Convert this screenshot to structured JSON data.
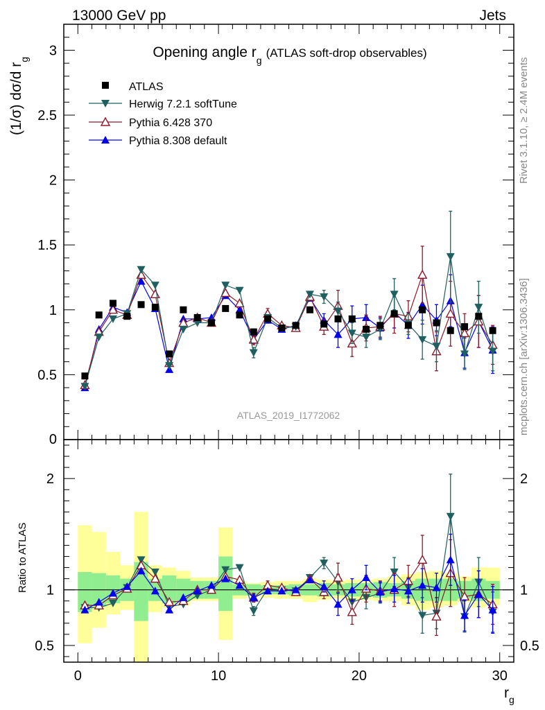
{
  "header": {
    "left": "13000 GeV pp",
    "right": "Jets"
  },
  "side_labels": {
    "rivet": "Rivet 3.1.10, ≥ 2.4M events",
    "mcplots": "mcplots.cern.ch [arXiv:1306.3436]"
  },
  "watermark": "ATLAS_2019_I1772062",
  "colors": {
    "herwig": "#1f5f5f",
    "pythia6": "#8b1a2b",
    "pythia8": "#0000ee",
    "atlas": "#000000",
    "band_inner": "#90ee90",
    "band_outer": "#ffff99"
  },
  "legend": {
    "atlas": "ATLAS",
    "herwig": "Herwig 7.2.1 softTune",
    "pythia6": "Pythia 6.428 370",
    "pythia8": "Pythia 8.308 default"
  },
  "chart_data": [
    {
      "type": "scatter",
      "title_main": "Opening angle r",
      "title_sub": "g",
      "title_rest": "(ATLAS soft-drop observables)",
      "ylabel": "(1/σ) dσ/d r",
      "ylabel_sub": "g",
      "xlim": [
        -1,
        31
      ],
      "ylim": [
        0,
        3.2
      ],
      "yticks": [
        0.5,
        1,
        1.5,
        2,
        2.5,
        3
      ],
      "ytick_labels": [
        "0.5",
        "1",
        "1.5",
        "2",
        "2.5",
        "3"
      ],
      "x": [
        0.5,
        1.5,
        2.5,
        3.5,
        4.5,
        5.5,
        6.5,
        7.5,
        8.5,
        9.5,
        10.5,
        11.5,
        12.5,
        13.5,
        14.5,
        15.5,
        16.5,
        17.5,
        18.5,
        19.5,
        20.5,
        21.5,
        22.5,
        23.5,
        24.5,
        25.5,
        26.5,
        27.5,
        28.5,
        29.5
      ],
      "series": [
        {
          "name": "ATLAS",
          "key": "atlas",
          "marker": "square",
          "values": [
            0.49,
            0.96,
            1.05,
            0.95,
            1.04,
            1.02,
            0.66,
            1.0,
            0.94,
            0.9,
            1.01,
            0.96,
            0.83,
            0.93,
            0.86,
            0.88,
            1.0,
            0.89,
            0.93,
            0.93,
            0.85,
            0.88,
            0.97,
            0.88,
            1.0,
            0.9,
            0.84,
            0.87,
            0.95,
            0.84
          ]
        },
        {
          "name": "Herwig 7.2.1 softTune",
          "key": "herwig",
          "marker": "triangle-down",
          "values": [
            0.41,
            0.79,
            0.93,
            0.97,
            1.31,
            1.19,
            0.57,
            0.85,
            0.9,
            0.9,
            1.19,
            1.15,
            0.67,
            0.94,
            0.86,
            0.87,
            1.12,
            1.1,
            0.99,
            0.82,
            0.79,
            0.85,
            1.12,
            0.89,
            0.77,
            0.72,
            1.41,
            0.66,
            1.02,
            0.68
          ],
          "errors": [
            0,
            0,
            0,
            0,
            0,
            0,
            0,
            0,
            0,
            0,
            0,
            0,
            0.04,
            0,
            0,
            0,
            0,
            0.05,
            0.07,
            0.08,
            0.08,
            0.08,
            0.12,
            0.08,
            0.15,
            0.12,
            0.35,
            0.12,
            0.2,
            0.15
          ]
        },
        {
          "name": "Pythia 6.428 370",
          "key": "pythia6",
          "marker": "triangle-up-open",
          "values": [
            0.42,
            0.83,
            1.0,
            0.96,
            1.27,
            1.12,
            0.59,
            0.9,
            0.94,
            0.9,
            1.13,
            1.05,
            0.77,
            0.97,
            0.88,
            0.86,
            1.1,
            0.87,
            1.03,
            0.74,
            0.86,
            0.87,
            0.97,
            0.95,
            1.27,
            0.68,
            0.97,
            0.82,
            0.91,
            0.73
          ],
          "errors": [
            0,
            0,
            0,
            0,
            0,
            0,
            0,
            0,
            0,
            0,
            0,
            0,
            0.04,
            0.04,
            0,
            0,
            0,
            0.06,
            0.12,
            0.1,
            0.1,
            0.08,
            0.15,
            0.12,
            0.22,
            0.15,
            0.25,
            0.15,
            0.2,
            0.15
          ]
        },
        {
          "name": "Pythia 8.308 default",
          "key": "pythia8",
          "marker": "triangle-up",
          "values": [
            0.4,
            0.85,
            1.02,
            0.98,
            1.22,
            1.01,
            0.54,
            0.93,
            0.93,
            0.94,
            1.11,
            1.0,
            0.77,
            0.92,
            0.85,
            0.88,
            1.09,
            0.92,
            0.81,
            0.93,
            0.94,
            0.86,
            0.98,
            0.88,
            1.04,
            0.92,
            1.07,
            0.67,
            0.91,
            0.69
          ],
          "errors": [
            0,
            0,
            0,
            0,
            0,
            0,
            0,
            0,
            0,
            0,
            0,
            0,
            0.03,
            0,
            0,
            0,
            0,
            0.05,
            0.1,
            0.1,
            0.1,
            0.08,
            0.12,
            0.1,
            0.15,
            0.12,
            0.2,
            0.12,
            0.2,
            0.18
          ]
        }
      ]
    },
    {
      "type": "scatter",
      "ylabel": "Ratio to ATLAS",
      "xlabel": "r",
      "xlabel_sub": "g",
      "xlim": [
        -1,
        31
      ],
      "ylim": [
        0.35,
        2.35
      ],
      "xticks": [
        0,
        10,
        20,
        30
      ],
      "xtick_labels": [
        "0",
        "10",
        "20",
        "30"
      ],
      "yticks": [
        0.5,
        1,
        2
      ],
      "ytick_labels": [
        "0.5",
        "1",
        "2"
      ],
      "bands": {
        "inner": [
          [
            0.8,
            1.16
          ],
          [
            0.85,
            1.15
          ],
          [
            0.88,
            1.13
          ],
          [
            0.9,
            1.1
          ],
          [
            0.72,
            1.25
          ],
          [
            0.9,
            1.1
          ],
          [
            0.88,
            1.13
          ],
          [
            0.9,
            1.1
          ],
          [
            0.92,
            1.08
          ],
          [
            0.92,
            1.08
          ],
          [
            0.81,
            1.3
          ],
          [
            0.95,
            1.05
          ],
          [
            0.95,
            1.05
          ],
          [
            0.96,
            1.04
          ],
          [
            0.96,
            1.04
          ],
          [
            0.95,
            1.05
          ],
          [
            0.95,
            1.05
          ],
          [
            0.94,
            1.06
          ],
          [
            0.95,
            1.05
          ],
          [
            0.94,
            1.06
          ],
          [
            0.94,
            1.06
          ],
          [
            0.93,
            1.07
          ],
          [
            0.94,
            1.06
          ],
          [
            0.92,
            1.08
          ],
          [
            0.9,
            1.1
          ],
          [
            0.9,
            1.1
          ],
          [
            0.9,
            1.1
          ],
          [
            0.92,
            1.08
          ],
          [
            0.9,
            1.1
          ],
          [
            0.92,
            1.08
          ]
        ],
        "outer": [
          [
            0.52,
            1.58
          ],
          [
            0.66,
            1.52
          ],
          [
            0.78,
            1.34
          ],
          [
            0.82,
            1.22
          ],
          [
            0.35,
            1.7
          ],
          [
            0.8,
            1.22
          ],
          [
            0.84,
            1.2
          ],
          [
            0.86,
            1.17
          ],
          [
            0.9,
            1.11
          ],
          [
            0.9,
            1.11
          ],
          [
            0.55,
            1.56
          ],
          [
            0.92,
            1.08
          ],
          [
            0.94,
            1.06
          ],
          [
            0.93,
            1.07
          ],
          [
            0.92,
            1.08
          ],
          [
            0.92,
            1.08
          ],
          [
            0.89,
            1.1
          ],
          [
            0.91,
            1.09
          ],
          [
            0.92,
            1.08
          ],
          [
            0.91,
            1.09
          ],
          [
            0.91,
            1.09
          ],
          [
            0.9,
            1.1
          ],
          [
            0.9,
            1.12
          ],
          [
            0.86,
            1.14
          ],
          [
            0.82,
            1.16
          ],
          [
            0.84,
            1.17
          ],
          [
            0.86,
            1.15
          ],
          [
            0.89,
            1.12
          ],
          [
            0.84,
            1.2
          ],
          [
            0.86,
            1.2
          ]
        ]
      },
      "series": [
        {
          "name": "Herwig 7.2.1 softTune",
          "key": "herwig",
          "marker": "triangle-down",
          "values": [
            0.84,
            0.84,
            0.88,
            1.02,
            1.27,
            1.16,
            0.85,
            0.87,
            0.95,
            1.0,
            1.18,
            1.2,
            0.81,
            1.01,
            1.0,
            0.99,
            1.11,
            1.24,
            1.07,
            0.89,
            0.93,
            0.97,
            1.16,
            1.02,
            0.77,
            0.79,
            1.66,
            0.76,
            1.07,
            0.8
          ],
          "errors": [
            0,
            0,
            0,
            0,
            0,
            0,
            0,
            0,
            0,
            0,
            0,
            0,
            0.04,
            0,
            0,
            0,
            0,
            0.05,
            0.07,
            0.09,
            0.1,
            0.09,
            0.13,
            0.09,
            0.16,
            0.14,
            0.38,
            0.14,
            0.22,
            0.18
          ]
        },
        {
          "name": "Pythia 6.428 370",
          "key": "pythia6",
          "marker": "triangle-up-open",
          "values": [
            0.86,
            0.86,
            0.95,
            1.01,
            1.22,
            1.1,
            0.89,
            0.9,
            1.0,
            1.0,
            1.12,
            1.09,
            0.93,
            1.04,
            1.02,
            0.98,
            1.1,
            0.98,
            1.11,
            0.8,
            1.01,
            0.99,
            1.0,
            1.08,
            1.27,
            0.76,
            1.15,
            0.94,
            0.96,
            0.87
          ],
          "errors": [
            0,
            0,
            0,
            0,
            0,
            0,
            0,
            0,
            0,
            0,
            0,
            0,
            0.04,
            0.04,
            0,
            0,
            0,
            0.06,
            0.13,
            0.11,
            0.12,
            0.09,
            0.15,
            0.14,
            0.22,
            0.17,
            0.3,
            0.17,
            0.21,
            0.18
          ]
        },
        {
          "name": "Pythia 8.308 default",
          "key": "pythia8",
          "marker": "triangle-up",
          "values": [
            0.82,
            0.89,
            0.97,
            1.03,
            1.17,
            0.99,
            0.82,
            0.93,
            0.99,
            1.04,
            1.1,
            1.04,
            0.93,
            0.99,
            0.99,
            1.0,
            1.09,
            1.03,
            0.87,
            1.0,
            1.11,
            0.98,
            1.01,
            0.99,
            1.04,
            1.02,
            1.27,
            0.77,
            0.96,
            0.82
          ],
          "errors": [
            0,
            0,
            0,
            0,
            0,
            0,
            0,
            0,
            0,
            0,
            0,
            0,
            0.03,
            0,
            0,
            0,
            0,
            0.05,
            0.1,
            0.1,
            0.11,
            0.09,
            0.12,
            0.11,
            0.15,
            0.13,
            0.23,
            0.14,
            0.21,
            0.21
          ]
        }
      ]
    }
  ]
}
